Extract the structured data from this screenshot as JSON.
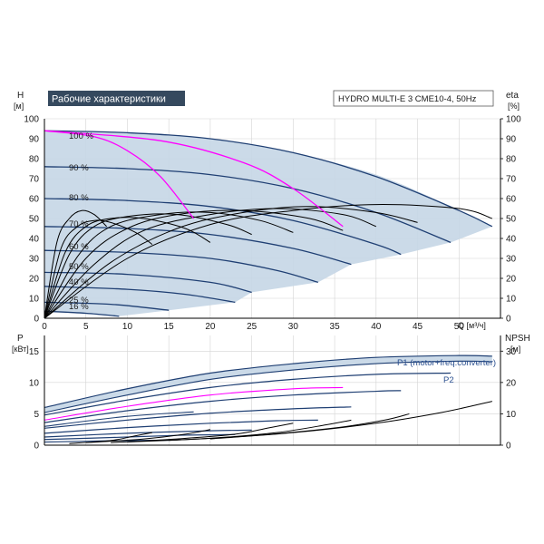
{
  "header": {
    "title": "Рабочие характеристики",
    "model": "HYDRO MULTI-E 3 CME10-4, 50Hz"
  },
  "colors": {
    "envelope_fill": "#c5d6e6",
    "speed_curve": "#1f3f73",
    "efficiency_curve": "#000000",
    "max_curve": "#ff00ff",
    "axis": "#000000",
    "title_bg": "#35495e"
  },
  "chart_data": [
    {
      "type": "line",
      "panel": "top",
      "xlabel": "Q [м³/ч]",
      "ylabel": "H",
      "ylabel_unit": "[м]",
      "y2label": "eta",
      "y2label_unit": "[%]",
      "xlim": [
        0,
        55
      ],
      "ylim": [
        0,
        100
      ],
      "y2lim": [
        0,
        100
      ],
      "x_ticks": [
        "0",
        "5",
        "10",
        "15",
        "20",
        "25",
        "30",
        "35",
        "40",
        "45",
        "50"
      ],
      "y_ticks": [
        "0",
        "10",
        "20",
        "30",
        "40",
        "50",
        "60",
        "70",
        "80",
        "90",
        "100"
      ],
      "y2_ticks": [
        "0",
        "10",
        "20",
        "30",
        "40",
        "50",
        "60",
        "70",
        "80",
        "90",
        "100"
      ],
      "speed_labels": [
        "100 %",
        "90 %",
        "80 %",
        "70 %",
        "60 %",
        "50 %",
        "40 %",
        "25 %",
        "16 %"
      ],
      "max_head_curve": {
        "x": [
          0,
          10,
          20,
          30,
          40,
          48,
          54
        ],
        "y": [
          94,
          93,
          90,
          83,
          72,
          58,
          46
        ]
      },
      "speed_curves": [
        {
          "label": "100 %",
          "x": [
            0,
            10,
            20,
            30,
            40,
            50,
            54
          ],
          "y": [
            94,
            93,
            90,
            83,
            71,
            54,
            46
          ]
        },
        {
          "label": "90 %",
          "x": [
            0,
            10,
            20,
            30,
            40,
            49
          ],
          "y": [
            76,
            75,
            72,
            65,
            53,
            38
          ]
        },
        {
          "label": "80 %",
          "x": [
            0,
            10,
            20,
            30,
            40,
            43
          ],
          "y": [
            60,
            59,
            56,
            49,
            37,
            32
          ]
        },
        {
          "label": "70 %",
          "x": [
            0,
            10,
            20,
            30,
            37
          ],
          "y": [
            46,
            45,
            42,
            35,
            27
          ]
        },
        {
          "label": "60 %",
          "x": [
            0,
            10,
            20,
            28,
            33
          ],
          "y": [
            34,
            33,
            30,
            24,
            18
          ]
        },
        {
          "label": "50 %",
          "x": [
            0,
            10,
            20,
            25
          ],
          "y": [
            23,
            22,
            18,
            13
          ]
        },
        {
          "label": "40 %",
          "x": [
            0,
            10,
            17,
            23
          ],
          "y": [
            16,
            14.5,
            12,
            8
          ]
        },
        {
          "label": "25 %",
          "x": [
            0,
            8,
            15
          ],
          "y": [
            8,
            7,
            4
          ]
        },
        {
          "label": "16 %",
          "x": [
            0,
            5,
            9
          ],
          "y": [
            3.5,
            2.5,
            1
          ]
        }
      ],
      "efficiency_curves": [
        {
          "x": [
            0,
            10,
            20,
            30,
            40,
            50,
            54
          ],
          "y": [
            0,
            30,
            47,
            54,
            57,
            55,
            50
          ]
        },
        {
          "x": [
            0,
            8,
            16,
            24,
            32,
            40,
            45
          ],
          "y": [
            0,
            28,
            45,
            53,
            56,
            53,
            48
          ]
        },
        {
          "x": [
            0,
            6,
            12,
            20,
            28,
            36,
            40
          ],
          "y": [
            0,
            27,
            44,
            52,
            55,
            52,
            46
          ]
        },
        {
          "x": [
            0,
            5,
            10,
            16,
            24,
            32,
            36
          ],
          "y": [
            0,
            30,
            45,
            52,
            54,
            50,
            44
          ]
        },
        {
          "x": [
            0,
            4,
            8,
            14,
            20,
            26,
            30
          ],
          "y": [
            0,
            31,
            46,
            52,
            53,
            49,
            43
          ]
        },
        {
          "x": [
            0,
            3,
            6,
            10,
            16,
            22,
            25
          ],
          "y": [
            0,
            32,
            46,
            51,
            52,
            47,
            42
          ]
        },
        {
          "x": [
            0,
            2.5,
            5,
            8,
            12,
            17,
            20
          ],
          "y": [
            0,
            33,
            46,
            50,
            50,
            45,
            38
          ]
        },
        {
          "x": [
            0,
            2,
            4,
            6,
            8,
            11,
            13
          ],
          "y": [
            0,
            35,
            46,
            49,
            48,
            43,
            37
          ]
        },
        {
          "x": [
            0,
            1.5,
            3,
            4.5,
            6,
            7.5
          ],
          "y": [
            0,
            38,
            50,
            54,
            52,
            46
          ]
        }
      ],
      "max_eta_curves": [
        {
          "x": [
            0,
            6,
            10,
            14,
            18
          ],
          "y": [
            94,
            91,
            84,
            71,
            50
          ]
        },
        {
          "x": [
            0,
            14,
            24,
            30,
            36
          ],
          "y": [
            94,
            89,
            78,
            65,
            46
          ]
        }
      ]
    },
    {
      "type": "line",
      "panel": "bottom",
      "xlabel": "",
      "ylabel": "P",
      "ylabel_unit": "[кВт]",
      "y2label": "NPSH",
      "y2label_unit": "[м]",
      "xlim": [
        0,
        55
      ],
      "ylim": [
        0,
        17.5
      ],
      "y2lim": [
        0,
        35
      ],
      "y_ticks": [
        "0",
        "5",
        "10",
        "15"
      ],
      "y2_ticks": [
        "0",
        "10",
        "20",
        "30"
      ],
      "series_labels": [
        "P1 (motor+freq.converter)",
        "P2"
      ],
      "envelope_top": {
        "x": [
          0,
          10,
          20,
          30,
          40,
          50,
          54
        ],
        "y": [
          6,
          9,
          11.5,
          13,
          14,
          14.3,
          14.2
        ]
      },
      "envelope_bottom": {
        "x": [
          0,
          10,
          20,
          30,
          40,
          50,
          54
        ],
        "y": [
          5.2,
          8,
          10.5,
          12.0,
          13.0,
          13.4,
          13.3
        ]
      },
      "p1_curves": [
        {
          "x": [
            0,
            10,
            20,
            30,
            40,
            50,
            54
          ],
          "y": [
            6,
            9,
            11.5,
            13,
            14,
            14.3,
            14.2
          ]
        },
        {
          "x": [
            0,
            10,
            20,
            30,
            40,
            49
          ],
          "y": [
            4.8,
            7.2,
            9.2,
            10.5,
            11.3,
            11.5
          ]
        },
        {
          "x": [
            0,
            10,
            20,
            30,
            40,
            43
          ],
          "y": [
            3.6,
            5.5,
            7.0,
            8.0,
            8.6,
            8.7
          ]
        },
        {
          "x": [
            0,
            10,
            20,
            30,
            37
          ],
          "y": [
            2.7,
            4.0,
            5.1,
            5.8,
            6.1
          ]
        },
        {
          "x": [
            0,
            10,
            20,
            28,
            33
          ],
          "y": [
            1.9,
            2.8,
            3.5,
            3.9,
            4.0
          ]
        },
        {
          "x": [
            0,
            10,
            20,
            25
          ],
          "y": [
            1.3,
            1.9,
            2.3,
            2.4
          ]
        },
        {
          "x": [
            0,
            10,
            17,
            23
          ],
          "y": [
            0.9,
            1.3,
            1.6,
            1.7
          ]
        },
        {
          "x": [
            0,
            8,
            15
          ],
          "y": [
            0.5,
            0.7,
            0.8
          ]
        }
      ],
      "p2_curves": [
        {
          "x": [
            0,
            10,
            20,
            30,
            40,
            50,
            54
          ],
          "y": [
            5.2,
            8,
            10.5,
            12.0,
            13.0,
            13.4,
            13.3
          ]
        },
        {
          "x": [
            0,
            10,
            20,
            30,
            36
          ],
          "y": [
            4.0,
            6.2,
            8.0,
            9.0,
            9.2
          ]
        },
        {
          "x": [
            0,
            10,
            18
          ],
          "y": [
            3.0,
            4.6,
            5.3
          ]
        }
      ],
      "npsh_curves": [
        {
          "x": [
            20,
            30,
            40,
            48,
            54
          ],
          "y": [
            2,
            4,
            7,
            10.5,
            14
          ]
        },
        {
          "x": [
            15,
            25,
            35,
            41,
            44
          ],
          "y": [
            1.5,
            3,
            5.5,
            8,
            10
          ]
        },
        {
          "x": [
            10,
            20,
            28,
            34,
            37
          ],
          "y": [
            1,
            2.2,
            4,
            6.5,
            8
          ]
        },
        {
          "x": [
            8,
            16,
            23,
            27,
            30
          ],
          "y": [
            0.8,
            2,
            3.5,
            5.5,
            7
          ]
        },
        {
          "x": [
            5,
            12,
            17,
            20
          ],
          "y": [
            0.8,
            2,
            3.5,
            5
          ]
        },
        {
          "x": [
            3,
            8,
            11,
            13
          ],
          "y": [
            0.5,
            1.5,
            3,
            4
          ]
        }
      ]
    }
  ]
}
